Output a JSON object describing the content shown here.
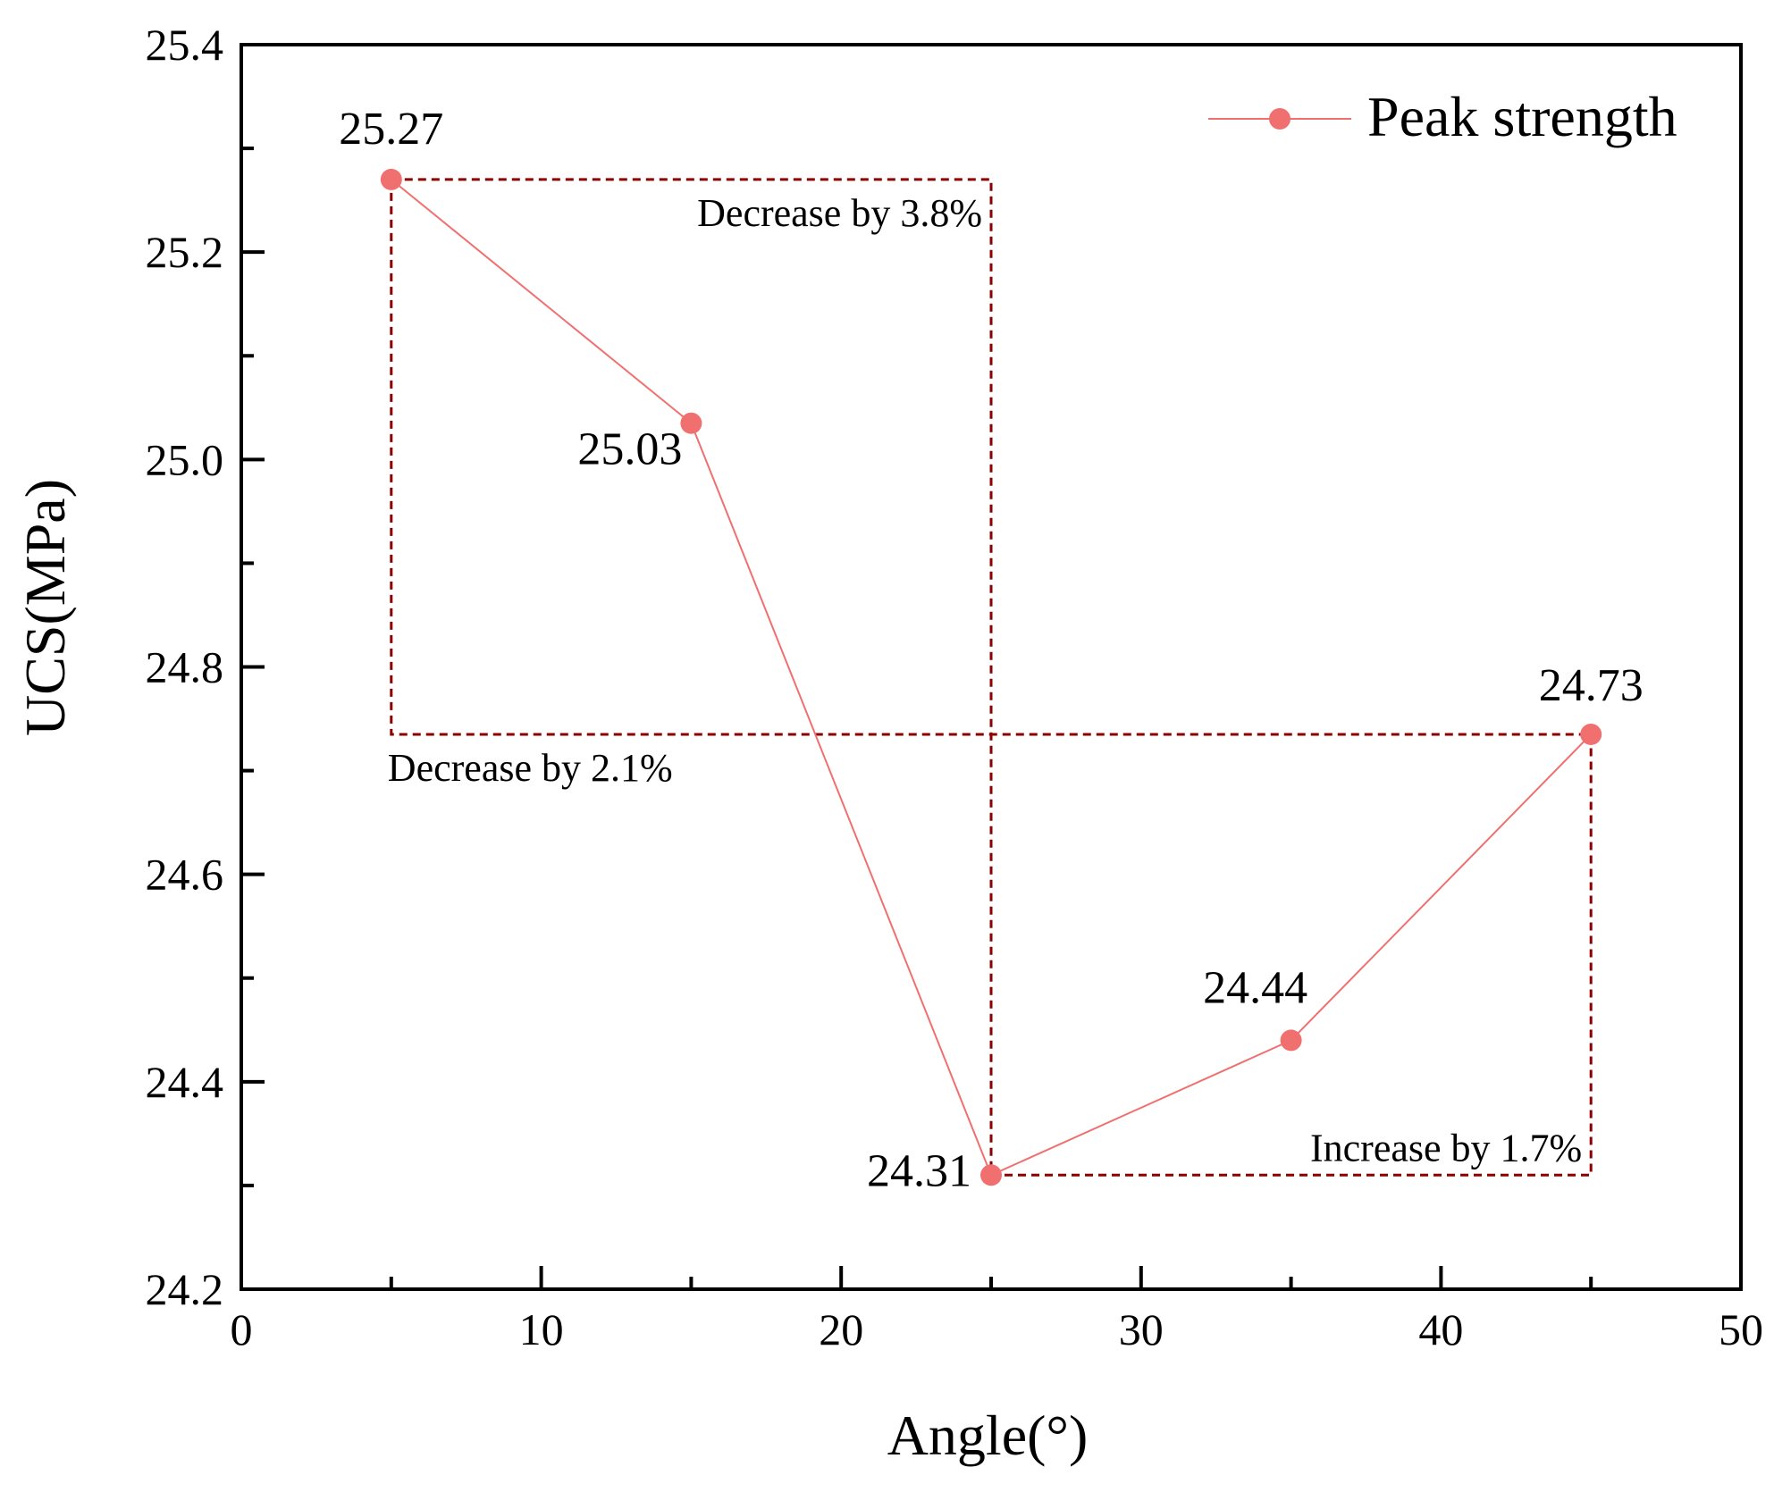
{
  "chart_data": {
    "type": "line",
    "title": "",
    "xlabel": "Angle(°)",
    "ylabel": "UCS(MPa)",
    "xlim": [
      0,
      50
    ],
    "ylim": [
      24.2,
      25.4
    ],
    "x_ticks": [
      0,
      10,
      20,
      30,
      40,
      50
    ],
    "x_tick_labels": [
      "0",
      "10",
      "20",
      "30",
      "40",
      "50"
    ],
    "y_ticks": [
      24.2,
      24.4,
      24.6,
      24.8,
      25.0,
      25.2,
      25.4
    ],
    "y_tick_labels": [
      "24.2",
      "24.4",
      "24.6",
      "24.8",
      "25.0",
      "25.2",
      "25.4"
    ],
    "grid": false,
    "legend_position": "top-right",
    "series": [
      {
        "name": "Peak strength",
        "color": "#f07070",
        "x": [
          5,
          15,
          25,
          35,
          45
        ],
        "values": [
          25.27,
          25.035,
          24.31,
          24.44,
          24.735
        ],
        "data_labels": [
          "25.27",
          "25.03",
          "24.31",
          "24.44",
          "24.73"
        ]
      }
    ],
    "annotation_color": "#8b0000",
    "annotations": [
      {
        "text": "Decrease by 3.8%",
        "path": [
          [
            5,
            25.27
          ],
          [
            25,
            25.27
          ],
          [
            25,
            24.31
          ]
        ],
        "arrow_at_end": true,
        "label_anchor": [
          25,
          25.27
        ],
        "label_placement": "below-left"
      },
      {
        "text": "Decrease by 2.1%",
        "path": [
          [
            5,
            25.27
          ],
          [
            5,
            24.735
          ],
          [
            45,
            24.735
          ]
        ],
        "arrow_at_end": true,
        "label_anchor": [
          5,
          24.735
        ],
        "label_placement": "below-right"
      },
      {
        "text": "Increase by 1.7%",
        "path": [
          [
            25,
            24.31
          ],
          [
            45,
            24.31
          ],
          [
            45,
            24.735
          ]
        ],
        "arrow_at_end": true,
        "label_anchor": [
          45,
          24.31
        ],
        "label_placement": "above-left"
      }
    ]
  }
}
